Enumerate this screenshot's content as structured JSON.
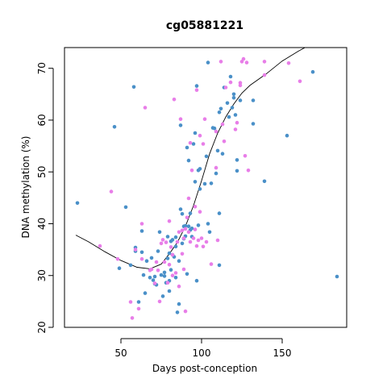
{
  "chart_data": {
    "type": "scatter",
    "title": "cg05881221",
    "xlabel": "Days post-conception",
    "ylabel": "DNA methylation (%)",
    "xlim": [
      15,
      190
    ],
    "ylim": [
      20,
      74
    ],
    "x_ticks": [
      50,
      100,
      150
    ],
    "y_ticks": [
      20,
      30,
      40,
      50,
      60,
      70
    ],
    "grid": false,
    "colors": {
      "blue": "#4a90c8",
      "pink": "#e87ee8",
      "line": "#000000",
      "frame": "#000000"
    },
    "series": [
      {
        "color_key": "blue",
        "points": [
          [
            23,
            44
          ],
          [
            46,
            58.7
          ],
          [
            49,
            31.4
          ],
          [
            53,
            43.2
          ],
          [
            56,
            32
          ],
          [
            58,
            66.4
          ],
          [
            59,
            34.7
          ],
          [
            59,
            35.4
          ],
          [
            61,
            24.9
          ],
          [
            63,
            38.6
          ],
          [
            63,
            34.5
          ],
          [
            64,
            30.1
          ],
          [
            65,
            26.6
          ],
          [
            66,
            32.8
          ],
          [
            68,
            29.6
          ],
          [
            69,
            33.4
          ],
          [
            70,
            29.1
          ],
          [
            71,
            28.4
          ],
          [
            71,
            29.8
          ],
          [
            72,
            28.2
          ],
          [
            73,
            34.7
          ],
          [
            74,
            38.4
          ],
          [
            75,
            30.1
          ],
          [
            76,
            26
          ],
          [
            77,
            30.6
          ],
          [
            77,
            29.9
          ],
          [
            78,
            28.6
          ],
          [
            79,
            37.5
          ],
          [
            79,
            33.3
          ],
          [
            80,
            29
          ],
          [
            80,
            34.3
          ],
          [
            80,
            27
          ],
          [
            81,
            31.1
          ],
          [
            81,
            36.6
          ],
          [
            82,
            34
          ],
          [
            82,
            36.9
          ],
          [
            83,
            33.6
          ],
          [
            84,
            35.6
          ],
          [
            84,
            37.4
          ],
          [
            84,
            29.6
          ],
          [
            85,
            22.9
          ],
          [
            86,
            24.5
          ],
          [
            86,
            32.8
          ],
          [
            87,
            59
          ],
          [
            87,
            42.8
          ],
          [
            88,
            41.9
          ],
          [
            88,
            36.2
          ],
          [
            89,
            39.5
          ],
          [
            89,
            37.1
          ],
          [
            90,
            37.6
          ],
          [
            90,
            39.6
          ],
          [
            91,
            30.3
          ],
          [
            91,
            54.7
          ],
          [
            92,
            39.5
          ],
          [
            92,
            52.2
          ],
          [
            93,
            38.8
          ],
          [
            93,
            42
          ],
          [
            94,
            39.1
          ],
          [
            94,
            37.5
          ],
          [
            95,
            55.4
          ],
          [
            96,
            48.1
          ],
          [
            96,
            57.5
          ],
          [
            97,
            29
          ],
          [
            97,
            66.6
          ],
          [
            98,
            39.7
          ],
          [
            98,
            50.3
          ],
          [
            99,
            50.6
          ],
          [
            99,
            46.7
          ],
          [
            102,
            47.7
          ],
          [
            103,
            53
          ],
          [
            104,
            71.1
          ],
          [
            104,
            40
          ],
          [
            105,
            38.4
          ],
          [
            106,
            47.8
          ],
          [
            107,
            58.5
          ],
          [
            108,
            58.4
          ],
          [
            109,
            49.7
          ],
          [
            110,
            54.1
          ],
          [
            111,
            42
          ],
          [
            111,
            61.5
          ],
          [
            111,
            32
          ],
          [
            112,
            62.2
          ],
          [
            113,
            53.5
          ],
          [
            114,
            66.3
          ],
          [
            116,
            63.3
          ],
          [
            117,
            60.6
          ],
          [
            118,
            68.4
          ],
          [
            119,
            62.4
          ],
          [
            120,
            65
          ],
          [
            120,
            64.3
          ],
          [
            121,
            61
          ],
          [
            122,
            50.2
          ],
          [
            122,
            52.3
          ],
          [
            124,
            63.8
          ],
          [
            132,
            63.8
          ],
          [
            132,
            59.3
          ],
          [
            139,
            48.2
          ],
          [
            153,
            57
          ],
          [
            169,
            69.3
          ],
          [
            184,
            29.8
          ]
        ]
      },
      {
        "color_key": "pink",
        "points": [
          [
            37,
            35.7
          ],
          [
            44,
            46.2
          ],
          [
            48,
            33.2
          ],
          [
            56,
            24.9
          ],
          [
            57,
            21.8
          ],
          [
            59,
            35
          ],
          [
            61,
            23.6
          ],
          [
            63,
            40
          ],
          [
            63,
            33.2
          ],
          [
            65,
            62.4
          ],
          [
            68,
            31
          ],
          [
            69,
            31.2
          ],
          [
            71,
            28.5
          ],
          [
            72,
            32.6
          ],
          [
            73,
            31
          ],
          [
            74,
            25
          ],
          [
            75,
            36.2
          ],
          [
            76,
            36.9
          ],
          [
            77,
            32.6
          ],
          [
            78,
            36.4
          ],
          [
            79,
            28.6
          ],
          [
            80,
            40.5
          ],
          [
            80,
            32.1
          ],
          [
            81,
            35.5
          ],
          [
            82,
            34
          ],
          [
            82,
            30
          ],
          [
            83,
            64
          ],
          [
            84,
            30.5
          ],
          [
            85,
            36.5
          ],
          [
            86,
            38.4
          ],
          [
            86,
            27.9
          ],
          [
            87,
            60.2
          ],
          [
            88,
            34.2
          ],
          [
            88,
            38.7
          ],
          [
            89,
            37.2
          ],
          [
            89,
            31.2
          ],
          [
            90,
            23.1
          ],
          [
            90,
            39
          ],
          [
            91,
            41.2
          ],
          [
            92,
            44.9
          ],
          [
            92,
            38.4
          ],
          [
            93,
            36.5
          ],
          [
            93,
            55.6
          ],
          [
            94,
            50.3
          ],
          [
            95,
            37.2
          ],
          [
            96,
            43.3
          ],
          [
            96,
            38.9
          ],
          [
            97,
            65.8
          ],
          [
            97,
            35.7
          ],
          [
            98,
            36.8
          ],
          [
            99,
            57
          ],
          [
            99,
            42.3
          ],
          [
            100,
            37.2
          ],
          [
            101,
            55.4
          ],
          [
            101,
            35.6
          ],
          [
            102,
            60.2
          ],
          [
            103,
            36.5
          ],
          [
            106,
            32.2
          ],
          [
            109,
            57.8
          ],
          [
            109,
            50.8
          ],
          [
            110,
            36.8
          ],
          [
            112,
            71.3
          ],
          [
            113,
            59.2
          ],
          [
            114,
            55.9
          ],
          [
            115,
            66.3
          ],
          [
            118,
            67.3
          ],
          [
            121,
            58.2
          ],
          [
            122,
            59.5
          ],
          [
            124,
            66.7
          ],
          [
            124,
            67.2
          ],
          [
            125,
            71.3
          ],
          [
            126,
            71.8
          ],
          [
            127,
            53.1
          ],
          [
            128,
            71.1
          ],
          [
            129,
            50.3
          ],
          [
            139,
            71.3
          ],
          [
            139,
            68.7
          ],
          [
            154,
            71
          ],
          [
            161,
            67.5
          ]
        ]
      }
    ],
    "trend_line": [
      [
        22,
        37.8
      ],
      [
        30,
        36.5
      ],
      [
        40,
        34.6
      ],
      [
        50,
        32.9
      ],
      [
        60,
        31.6
      ],
      [
        68,
        31.3
      ],
      [
        75,
        32.2
      ],
      [
        80,
        34.2
      ],
      [
        85,
        36.4
      ],
      [
        90,
        39.5
      ],
      [
        95,
        43.5
      ],
      [
        100,
        48.3
      ],
      [
        105,
        53.5
      ],
      [
        110,
        57.5
      ],
      [
        115,
        60.6
      ],
      [
        120,
        63.1
      ],
      [
        125,
        65.2
      ],
      [
        130,
        66.7
      ],
      [
        140,
        68.9
      ],
      [
        150,
        71.4
      ],
      [
        160,
        73.3
      ],
      [
        170,
        75
      ]
    ]
  }
}
